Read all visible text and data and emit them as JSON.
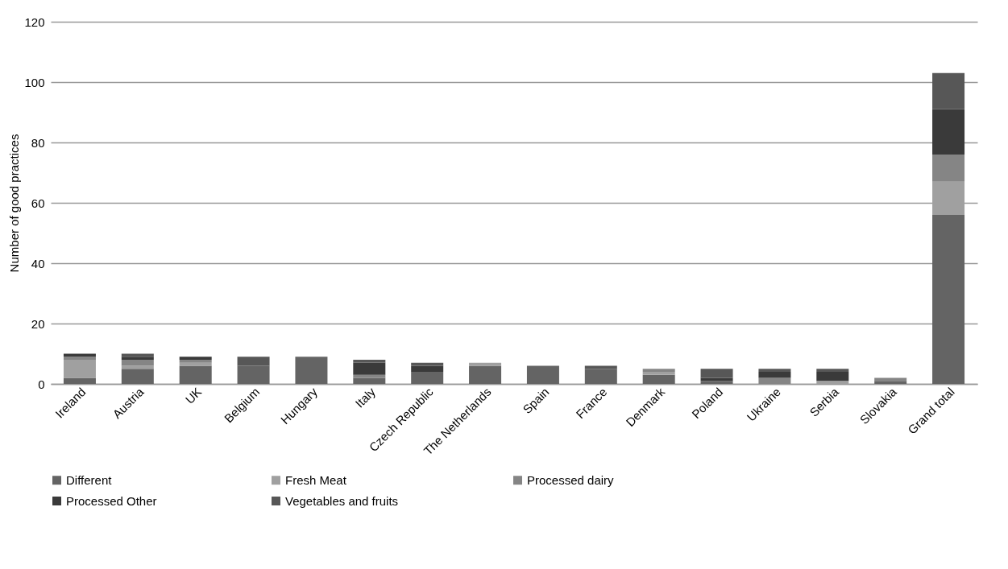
{
  "chart_data": {
    "type": "bar",
    "stacked": true,
    "ylabel": "Number of good practices",
    "categories": [
      "Ireland",
      "Austria",
      "UK",
      "Belgium",
      "Hungary",
      "Italy",
      "Czech Republic",
      "The Netherlands",
      "Spain",
      "France",
      "Denmark",
      "Poland",
      "Ukraine",
      "Serbia",
      "Slovakia",
      "Grand total"
    ],
    "series": [
      {
        "name": "Different",
        "color": "#646464",
        "values": [
          2,
          5,
          6,
          6,
          9,
          2,
          4,
          6,
          6,
          5,
          3,
          1,
          0,
          0,
          1,
          56
        ]
      },
      {
        "name": "Fresh Meat",
        "color": "#a0a0a0",
        "values": [
          6,
          1,
          1,
          0,
          0,
          0,
          0,
          1,
          0,
          0,
          1,
          0,
          0,
          1,
          0,
          11
        ]
      },
      {
        "name": "Processed dairy",
        "color": "#858585",
        "values": [
          1,
          2,
          1,
          0,
          0,
          1,
          0,
          0,
          0,
          0,
          1,
          0,
          2,
          0,
          1,
          9
        ]
      },
      {
        "name": "Processed Other",
        "color": "#3a3a3a",
        "values": [
          1,
          1,
          1,
          0,
          0,
          4,
          2,
          0,
          0,
          0,
          0,
          1,
          2,
          3,
          0,
          15
        ]
      },
      {
        "name": "Vegetables and fruits",
        "color": "#575757",
        "values": [
          0,
          1,
          0,
          3,
          0,
          1,
          1,
          0,
          0,
          1,
          0,
          3,
          1,
          1,
          0,
          12
        ]
      }
    ],
    "ylim": [
      0,
      120
    ],
    "yticks": [
      0,
      20,
      40,
      60,
      80,
      100,
      120
    ],
    "grid": "y",
    "legend": "bottom"
  }
}
